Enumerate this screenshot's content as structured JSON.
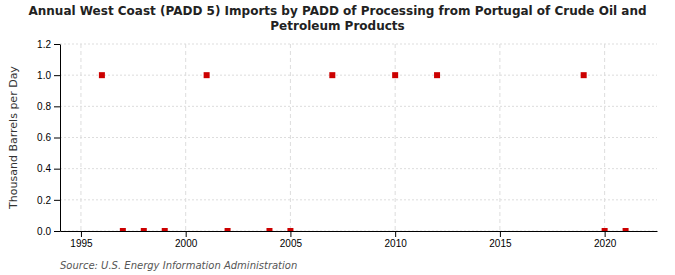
{
  "chart_data": {
    "type": "scatter",
    "title": "Annual West Coast (PADD 5) Imports by PADD of Processing from Portugal of Crude Oil and\nPetroleum Products",
    "y_label": "Thousand Barrels per Day",
    "source": "Source: U.S. Energy Information Administration",
    "x": [
      1996,
      1997,
      1998,
      1999,
      2001,
      2002,
      2004,
      2005,
      2007,
      2010,
      2012,
      2019,
      2020,
      2021
    ],
    "values": [
      1.0,
      0.0,
      0.0,
      0.0,
      1.0,
      0.0,
      0.0,
      0.0,
      1.0,
      1.0,
      1.0,
      1.0,
      0.0,
      0.0
    ],
    "color": "#cc0000",
    "marker": "square",
    "xlim": [
      1994.0,
      2022.5
    ],
    "ylim": [
      0.0,
      1.2
    ],
    "xticks": [
      1995,
      2000,
      2005,
      2010,
      2015,
      2020
    ],
    "yticks": [
      {
        "value": 0.0,
        "label": "0.0"
      },
      0.2,
      0.4,
      0.6,
      0.8,
      {
        "value": 1.0,
        "label": "1.0"
      },
      1.2
    ],
    "grid": true
  }
}
